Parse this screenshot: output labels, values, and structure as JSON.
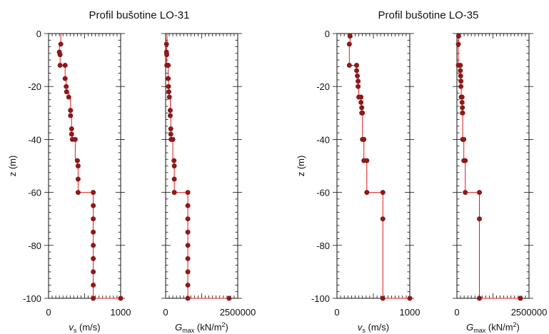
{
  "figure": {
    "colors": {
      "series": "#e31a1c",
      "marker": "#8b1a1a",
      "axis": "#111111"
    }
  },
  "chart_data": [
    {
      "type": "line",
      "title": "Profil bušotine LO-31",
      "xlabel": "vs (m/s)",
      "xlabel_main": "v",
      "xlabel_sub": "s",
      "xlabel_unit": " (m/s)",
      "ylabel": "z (m)",
      "ylim": [
        -100,
        0
      ],
      "xlim": [
        0,
        1000
      ],
      "yticks": [
        0,
        -20,
        -40,
        -60,
        -80,
        -100
      ],
      "xticks": [
        0,
        1000
      ],
      "series": [
        {
          "points": [
            [
              170,
              0
            ],
            [
              170,
              -4
            ],
            [
              150,
              -4
            ],
            [
              150,
              -7
            ],
            [
              160,
              -7
            ],
            [
              160,
              -12
            ],
            [
              230,
              -12
            ],
            [
              230,
              -17
            ],
            [
              245,
              -17
            ],
            [
              245,
              -20
            ],
            [
              250,
              -20
            ],
            [
              250,
              -22
            ],
            [
              280,
              -22
            ],
            [
              280,
              -24
            ],
            [
              305,
              -24
            ],
            [
              305,
              -29
            ],
            [
              305,
              -31
            ],
            [
              320,
              -31
            ],
            [
              320,
              -36
            ],
            [
              320,
              -38
            ],
            [
              330,
              -38
            ],
            [
              330,
              -40
            ],
            [
              370,
              -40
            ],
            [
              370,
              -48
            ],
            [
              400,
              -48
            ],
            [
              400,
              -50
            ],
            [
              410,
              -50
            ],
            [
              410,
              -55
            ],
            [
              410,
              -60
            ],
            [
              620,
              -60
            ],
            [
              620,
              -65
            ],
            [
              620,
              -70
            ],
            [
              620,
              -75
            ],
            [
              620,
              -80
            ],
            [
              620,
              -85
            ],
            [
              620,
              -90
            ],
            [
              620,
              -95
            ],
            [
              620,
              -100
            ],
            [
              1000,
              -100
            ]
          ],
          "markers": [
            [
              170,
              -4
            ],
            [
              150,
              -7
            ],
            [
              160,
              -8
            ],
            [
              160,
              -12
            ],
            [
              230,
              -12
            ],
            [
              230,
              -17
            ],
            [
              245,
              -20
            ],
            [
              250,
              -22
            ],
            [
              280,
              -24
            ],
            [
              305,
              -29
            ],
            [
              305,
              -31
            ],
            [
              320,
              -36
            ],
            [
              320,
              -38
            ],
            [
              330,
              -40
            ],
            [
              370,
              -40
            ],
            [
              400,
              -48
            ],
            [
              410,
              -50
            ],
            [
              410,
              -55
            ],
            [
              410,
              -60
            ],
            [
              620,
              -60
            ],
            [
              620,
              -65
            ],
            [
              620,
              -70
            ],
            [
              620,
              -75
            ],
            [
              620,
              -80
            ],
            [
              620,
              -85
            ],
            [
              620,
              -90
            ],
            [
              620,
              -95
            ],
            [
              620,
              -100
            ],
            [
              1000,
              -100
            ]
          ]
        }
      ]
    },
    {
      "type": "line",
      "title": "",
      "xlabel": "Gmax (kN/m2)",
      "xlabel_main": "G",
      "xlabel_sub": "max",
      "xlabel_unit": " (kN/m",
      "xlabel_sup": "2",
      "xlabel_end": ")",
      "ylabel": "",
      "ylim": [
        -100,
        0
      ],
      "xlim": [
        0,
        2500000
      ],
      "yticks": [
        0,
        -20,
        -40,
        -60,
        -80,
        -100
      ],
      "xticks": [
        0,
        2500000
      ],
      "series": [
        {
          "points": [
            [
              50000,
              0
            ],
            [
              50000,
              -4
            ],
            [
              30000,
              -4
            ],
            [
              30000,
              -7
            ],
            [
              40000,
              -7
            ],
            [
              40000,
              -12
            ],
            [
              90000,
              -12
            ],
            [
              90000,
              -17
            ],
            [
              100000,
              -17
            ],
            [
              100000,
              -20
            ],
            [
              110000,
              -20
            ],
            [
              110000,
              -22
            ],
            [
              130000,
              -22
            ],
            [
              130000,
              -24
            ],
            [
              160000,
              -24
            ],
            [
              160000,
              -29
            ],
            [
              160000,
              -31
            ],
            [
              180000,
              -31
            ],
            [
              180000,
              -36
            ],
            [
              180000,
              -38
            ],
            [
              190000,
              -38
            ],
            [
              190000,
              -40
            ],
            [
              250000,
              -40
            ],
            [
              250000,
              -48
            ],
            [
              290000,
              -48
            ],
            [
              290000,
              -50
            ],
            [
              300000,
              -50
            ],
            [
              300000,
              -55
            ],
            [
              300000,
              -60
            ],
            [
              770000,
              -60
            ],
            [
              770000,
              -65
            ],
            [
              770000,
              -70
            ],
            [
              770000,
              -75
            ],
            [
              770000,
              -80
            ],
            [
              770000,
              -85
            ],
            [
              770000,
              -90
            ],
            [
              770000,
              -95
            ],
            [
              770000,
              -100
            ],
            [
              2200000,
              -100
            ]
          ],
          "markers": [
            [
              30000,
              -4
            ],
            [
              30000,
              -7
            ],
            [
              40000,
              -8
            ],
            [
              40000,
              -12
            ],
            [
              90000,
              -12
            ],
            [
              90000,
              -17
            ],
            [
              100000,
              -20
            ],
            [
              110000,
              -22
            ],
            [
              130000,
              -24
            ],
            [
              160000,
              -29
            ],
            [
              160000,
              -31
            ],
            [
              180000,
              -36
            ],
            [
              180000,
              -38
            ],
            [
              190000,
              -40
            ],
            [
              250000,
              -40
            ],
            [
              290000,
              -48
            ],
            [
              300000,
              -50
            ],
            [
              300000,
              -55
            ],
            [
              300000,
              -60
            ],
            [
              770000,
              -60
            ],
            [
              770000,
              -65
            ],
            [
              770000,
              -70
            ],
            [
              770000,
              -75
            ],
            [
              770000,
              -80
            ],
            [
              770000,
              -85
            ],
            [
              770000,
              -90
            ],
            [
              770000,
              -95
            ],
            [
              770000,
              -100
            ],
            [
              2200000,
              -100
            ]
          ]
        }
      ]
    },
    {
      "type": "line",
      "title": "Profil bušotine LO-35",
      "xlabel": "vs (m/s)",
      "xlabel_main": "v",
      "xlabel_sub": "s",
      "xlabel_unit": " (m/s)",
      "ylabel": "z (m)",
      "ylim": [
        -100,
        0
      ],
      "xlim": [
        0,
        1000
      ],
      "yticks": [
        0,
        -20,
        -40,
        -60,
        -80,
        -100
      ],
      "xticks": [
        0,
        1000
      ],
      "series": [
        {
          "points": [
            [
              180,
              0
            ],
            [
              180,
              -4
            ],
            [
              170,
              -4
            ],
            [
              170,
              -12
            ],
            [
              270,
              -12
            ],
            [
              270,
              -14
            ],
            [
              280,
              -14
            ],
            [
              280,
              -16
            ],
            [
              290,
              -16
            ],
            [
              290,
              -20
            ],
            [
              300,
              -20
            ],
            [
              300,
              -24
            ],
            [
              330,
              -24
            ],
            [
              330,
              -26
            ],
            [
              340,
              -26
            ],
            [
              340,
              -28
            ],
            [
              340,
              -30
            ],
            [
              350,
              -30
            ],
            [
              350,
              -40
            ],
            [
              370,
              -40
            ],
            [
              370,
              -48
            ],
            [
              410,
              -48
            ],
            [
              410,
              -60
            ],
            [
              630,
              -60
            ],
            [
              630,
              -70
            ],
            [
              630,
              -100
            ],
            [
              1000,
              -100
            ]
          ],
          "markers": [
            [
              180,
              -1
            ],
            [
              170,
              -4
            ],
            [
              170,
              -12
            ],
            [
              270,
              -12
            ],
            [
              270,
              -14
            ],
            [
              280,
              -16
            ],
            [
              290,
              -18
            ],
            [
              290,
              -20
            ],
            [
              300,
              -24
            ],
            [
              330,
              -24
            ],
            [
              330,
              -26
            ],
            [
              340,
              -28
            ],
            [
              340,
              -30
            ],
            [
              350,
              -30
            ],
            [
              350,
              -40
            ],
            [
              370,
              -40
            ],
            [
              370,
              -48
            ],
            [
              410,
              -48
            ],
            [
              410,
              -60
            ],
            [
              630,
              -60
            ],
            [
              630,
              -70
            ],
            [
              630,
              -100
            ],
            [
              1000,
              -100
            ]
          ]
        }
      ]
    },
    {
      "type": "line",
      "title": "",
      "xlabel": "Gmax (kN/m2)",
      "xlabel_main": "G",
      "xlabel_sub": "max",
      "xlabel_unit": " (kN/m",
      "xlabel_sup": "2",
      "xlabel_end": ")",
      "ylabel": "",
      "ylim": [
        -100,
        0
      ],
      "xlim": [
        0,
        2500000
      ],
      "yticks": [
        0,
        -20,
        -40,
        -60,
        -80,
        -100
      ],
      "xticks": [
        0,
        2500000
      ],
      "series": [
        {
          "points": [
            [
              60000,
              0
            ],
            [
              60000,
              -4
            ],
            [
              50000,
              -4
            ],
            [
              50000,
              -12
            ],
            [
              120000,
              -12
            ],
            [
              120000,
              -14
            ],
            [
              130000,
              -14
            ],
            [
              130000,
              -16
            ],
            [
              140000,
              -16
            ],
            [
              140000,
              -20
            ],
            [
              150000,
              -20
            ],
            [
              150000,
              -24
            ],
            [
              180000,
              -24
            ],
            [
              180000,
              -26
            ],
            [
              190000,
              -26
            ],
            [
              190000,
              -28
            ],
            [
              190000,
              -30
            ],
            [
              200000,
              -30
            ],
            [
              200000,
              -40
            ],
            [
              240000,
              -40
            ],
            [
              240000,
              -48
            ],
            [
              290000,
              -48
            ],
            [
              290000,
              -60
            ],
            [
              780000,
              -60
            ],
            [
              780000,
              -70
            ],
            [
              780000,
              -100
            ],
            [
              2200000,
              -100
            ]
          ],
          "markers": [
            [
              60000,
              -1
            ],
            [
              50000,
              -4
            ],
            [
              50000,
              -12
            ],
            [
              120000,
              -12
            ],
            [
              120000,
              -14
            ],
            [
              130000,
              -16
            ],
            [
              140000,
              -18
            ],
            [
              140000,
              -20
            ],
            [
              150000,
              -24
            ],
            [
              180000,
              -24
            ],
            [
              180000,
              -26
            ],
            [
              190000,
              -28
            ],
            [
              190000,
              -30
            ],
            [
              200000,
              -30
            ],
            [
              200000,
              -40
            ],
            [
              240000,
              -40
            ],
            [
              240000,
              -48
            ],
            [
              290000,
              -48
            ],
            [
              290000,
              -60
            ],
            [
              780000,
              -60
            ],
            [
              780000,
              -70
            ],
            [
              780000,
              -100
            ],
            [
              2200000,
              -100
            ]
          ]
        }
      ]
    }
  ]
}
